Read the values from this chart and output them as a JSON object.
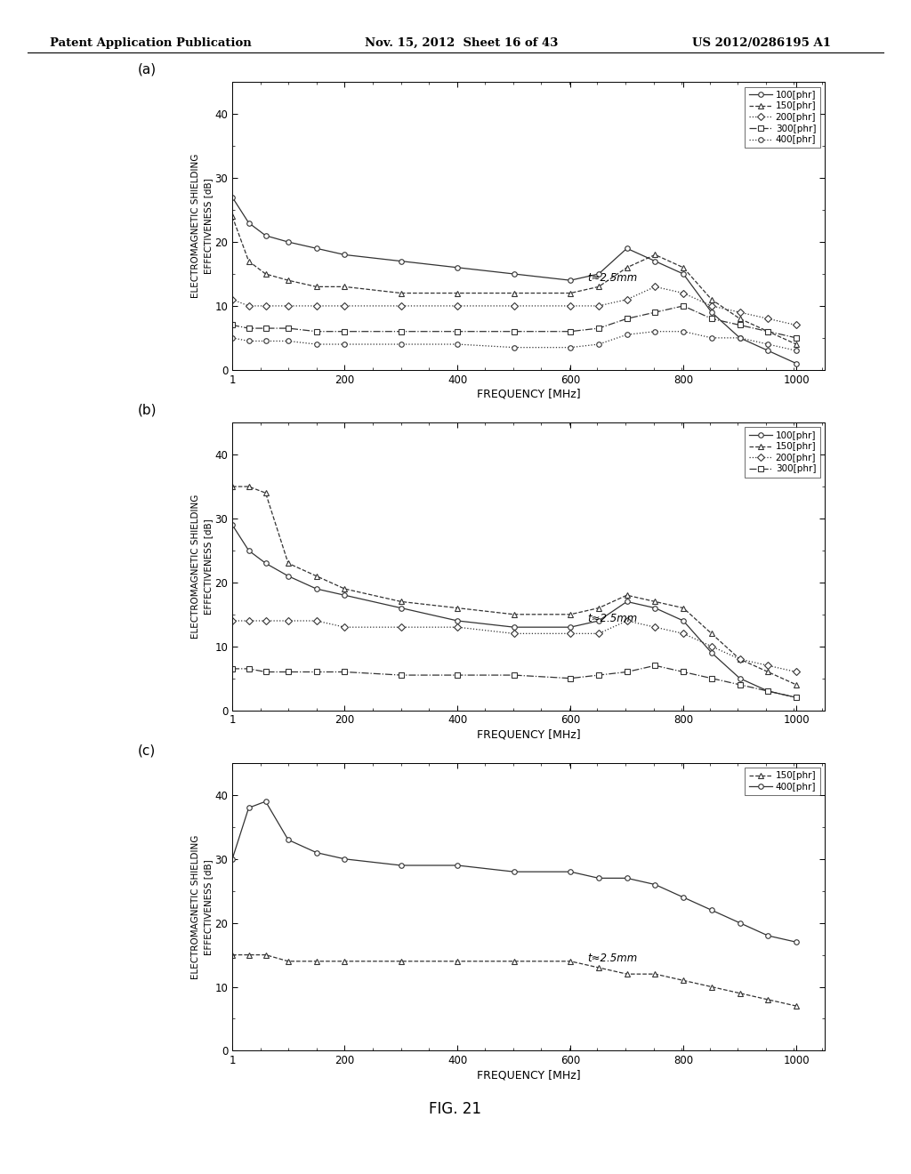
{
  "header_left": "Patent Application Publication",
  "header_mid": "Nov. 15, 2012  Sheet 16 of 43",
  "header_right": "US 2012/0286195 A1",
  "figure_label": "FIG. 21",
  "background_color": "#f0f0f0",
  "subplots": [
    {
      "label": "(a)",
      "thickness": "t≈2.5mm",
      "xlabel": "FREQUENCY [MHz]",
      "ylabel": "ELECTROMAGNETIC SHIELDING\nEFFECTIVENESS [dB]",
      "ylim": [
        0,
        45
      ],
      "yticks": [
        0,
        10,
        20,
        30,
        40
      ],
      "xlim": [
        1,
        1050
      ],
      "xticks": [
        1,
        200,
        400,
        600,
        800,
        1000
      ],
      "xticklabels": [
        "1",
        "200",
        "400",
        "600",
        "800",
        "1000"
      ],
      "series": [
        {
          "label": "100[phr]",
          "marker": "o",
          "linestyle": "-",
          "x": [
            1,
            30,
            60,
            100,
            150,
            200,
            300,
            400,
            500,
            600,
            650,
            700,
            750,
            800,
            850,
            900,
            950,
            1000
          ],
          "y": [
            27,
            23,
            21,
            20,
            19,
            18,
            17,
            16,
            15,
            14,
            15,
            19,
            17,
            15,
            9,
            5,
            3,
            1
          ]
        },
        {
          "label": "150[phr]",
          "marker": "^",
          "linestyle": "--",
          "x": [
            1,
            30,
            60,
            100,
            150,
            200,
            300,
            400,
            500,
            600,
            650,
            700,
            750,
            800,
            850,
            900,
            950,
            1000
          ],
          "y": [
            24,
            17,
            15,
            14,
            13,
            13,
            12,
            12,
            12,
            12,
            13,
            16,
            18,
            16,
            11,
            8,
            6,
            4
          ]
        },
        {
          "label": "200[phr]",
          "marker": "D",
          "linestyle": ":",
          "x": [
            1,
            30,
            60,
            100,
            150,
            200,
            300,
            400,
            500,
            600,
            650,
            700,
            750,
            800,
            850,
            900,
            950,
            1000
          ],
          "y": [
            11,
            10,
            10,
            10,
            10,
            10,
            10,
            10,
            10,
            10,
            10,
            11,
            13,
            12,
            10,
            9,
            8,
            7
          ]
        },
        {
          "label": "300[phr]",
          "marker": "s",
          "linestyle": "-.",
          "x": [
            1,
            30,
            60,
            100,
            150,
            200,
            300,
            400,
            500,
            600,
            650,
            700,
            750,
            800,
            850,
            900,
            950,
            1000
          ],
          "y": [
            7,
            6.5,
            6.5,
            6.5,
            6,
            6,
            6,
            6,
            6,
            6,
            6.5,
            8,
            9,
            10,
            8,
            7,
            6,
            5
          ]
        },
        {
          "label": "400[phr]",
          "marker": "o",
          "linestyle": "dotted",
          "x": [
            1,
            30,
            60,
            100,
            150,
            200,
            300,
            400,
            500,
            600,
            650,
            700,
            750,
            800,
            850,
            900,
            950,
            1000
          ],
          "y": [
            5,
            4.5,
            4.5,
            4.5,
            4,
            4,
            4,
            4,
            3.5,
            3.5,
            4,
            5.5,
            6,
            6,
            5,
            5,
            4,
            3
          ]
        }
      ]
    },
    {
      "label": "(b)",
      "thickness": "t≈2.5mm",
      "xlabel": "FREQUENCY [MHz]",
      "ylabel": "ELECTROMAGNETIC SHIELDING\nEFFECTIVENESS [dB]",
      "ylim": [
        0,
        45
      ],
      "yticks": [
        0,
        10,
        20,
        30,
        40
      ],
      "xlim": [
        1,
        1050
      ],
      "xticks": [
        1,
        200,
        400,
        600,
        800,
        1000
      ],
      "xticklabels": [
        "1",
        "200",
        "400",
        "600",
        "800",
        "1000"
      ],
      "series": [
        {
          "label": "100[phr]",
          "marker": "o",
          "linestyle": "-",
          "x": [
            1,
            30,
            60,
            100,
            150,
            200,
            300,
            400,
            500,
            600,
            650,
            700,
            750,
            800,
            850,
            900,
            950,
            1000
          ],
          "y": [
            29,
            25,
            23,
            21,
            19,
            18,
            16,
            14,
            13,
            13,
            14,
            17,
            16,
            14,
            9,
            5,
            3,
            2
          ]
        },
        {
          "label": "150[phr]",
          "marker": "^",
          "linestyle": "--",
          "x": [
            1,
            30,
            60,
            100,
            150,
            200,
            300,
            400,
            500,
            600,
            650,
            700,
            750,
            800,
            850,
            900,
            950,
            1000
          ],
          "y": [
            35,
            35,
            34,
            23,
            21,
            19,
            17,
            16,
            15,
            15,
            16,
            18,
            17,
            16,
            12,
            8,
            6,
            4
          ]
        },
        {
          "label": "200[phr]",
          "marker": "D",
          "linestyle": ":",
          "x": [
            1,
            30,
            60,
            100,
            150,
            200,
            300,
            400,
            500,
            600,
            650,
            700,
            750,
            800,
            850,
            900,
            950,
            1000
          ],
          "y": [
            14,
            14,
            14,
            14,
            14,
            13,
            13,
            13,
            12,
            12,
            12,
            14,
            13,
            12,
            10,
            8,
            7,
            6
          ]
        },
        {
          "label": "300[phr]",
          "marker": "s",
          "linestyle": "-.",
          "x": [
            1,
            30,
            60,
            100,
            150,
            200,
            300,
            400,
            500,
            600,
            650,
            700,
            750,
            800,
            850,
            900,
            950,
            1000
          ],
          "y": [
            6.5,
            6.5,
            6,
            6,
            6,
            6,
            5.5,
            5.5,
            5.5,
            5,
            5.5,
            6,
            7,
            6,
            5,
            4,
            3,
            2
          ]
        }
      ]
    },
    {
      "label": "(c)",
      "thickness": "t≈2.5mm",
      "xlabel": "FREQUENCY [MHz]",
      "ylabel": "ELECTROMAGNETIC SHIELDING\nEFFECTIVENESS [dB]",
      "ylim": [
        0,
        45
      ],
      "yticks": [
        0,
        10,
        20,
        30,
        40
      ],
      "xlim": [
        1,
        1050
      ],
      "xticks": [
        1,
        200,
        400,
        600,
        800,
        1000
      ],
      "xticklabels": [
        "1",
        "200",
        "400",
        "600",
        "800",
        "1000"
      ],
      "series": [
        {
          "label": "150[phr]",
          "marker": "^",
          "linestyle": "--",
          "x": [
            1,
            30,
            60,
            100,
            150,
            200,
            300,
            400,
            500,
            600,
            650,
            700,
            750,
            800,
            850,
            900,
            950,
            1000
          ],
          "y": [
            15,
            15,
            15,
            14,
            14,
            14,
            14,
            14,
            14,
            14,
            13,
            12,
            12,
            11,
            10,
            9,
            8,
            7
          ]
        },
        {
          "label": "400[phr]",
          "marker": "o",
          "linestyle": "-",
          "x": [
            1,
            30,
            60,
            100,
            150,
            200,
            300,
            400,
            500,
            600,
            650,
            700,
            750,
            800,
            850,
            900,
            950,
            1000
          ],
          "y": [
            30,
            38,
            39,
            33,
            31,
            30,
            29,
            29,
            28,
            28,
            27,
            27,
            26,
            24,
            22,
            20,
            18,
            17
          ]
        }
      ]
    }
  ],
  "line_color": "#333333",
  "marker_size": 4,
  "line_width": 0.9
}
